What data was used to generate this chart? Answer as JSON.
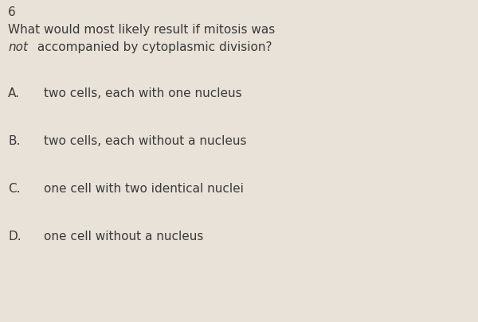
{
  "question_number": "6",
  "question_line1": "What would most likely result if mitosis was",
  "question_line2_italic": "not",
  "question_line2_normal": " accompanied by cytoplasmic division?",
  "answer_A_label": "A.",
  "answer_A_text": "two cells, each with one nucleus",
  "answer_B_label": "B.",
  "answer_B_text": "two cells, each without a nucleus",
  "answer_C_label": "C.",
  "answer_C_text": "one cell with two identical nuclei",
  "answer_D_label": "D.",
  "answer_D_text": "one cell without a nucleus",
  "bg_color": "#e8e2d8",
  "text_color": "#3a3a3a",
  "font_size_number": 11,
  "font_size_question": 11,
  "font_size_answers": 11,
  "fig_width": 6.0,
  "fig_height": 4.05,
  "dpi": 100
}
